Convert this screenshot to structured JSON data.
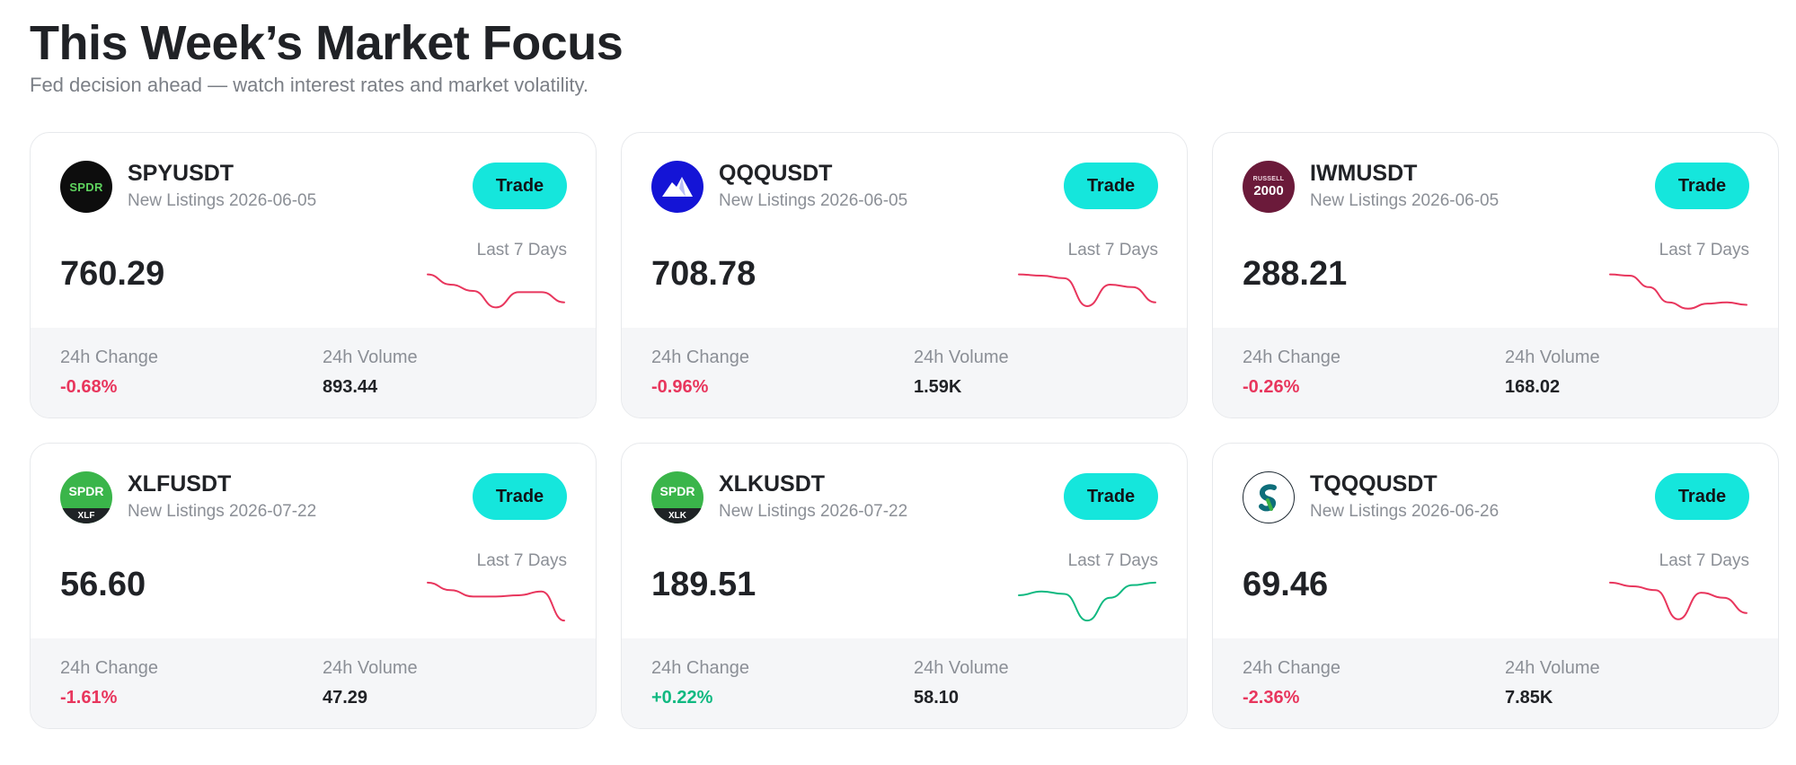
{
  "header": {
    "title": "This Week’s Market Focus",
    "subtitle": "Fed decision ahead — watch interest rates and market volatility."
  },
  "colors": {
    "negative": "#e8365d",
    "positive": "#10b981",
    "accent": "#15e6dc"
  },
  "labels": {
    "trade": "Trade",
    "range": "Last 7 Days",
    "change": "24h Change",
    "volume": "24h Volume"
  },
  "cards": [
    {
      "symbol": "SPYUSDT",
      "listing": "New Listings 2026-06-05",
      "price": "760.29",
      "change": "-0.68%",
      "volume": "893.44",
      "trend": "down",
      "logo": {
        "icon": "spdr-logo",
        "text": "SPDR",
        "sub": ""
      },
      "spark": [
        30,
        22,
        17,
        4,
        16,
        16,
        8
      ]
    },
    {
      "symbol": "QQQUSDT",
      "listing": "New Listings 2026-06-05",
      "price": "708.78",
      "change": "-0.96%",
      "volume": "1.59K",
      "trend": "down",
      "logo": {
        "icon": "invesco-mountain-logo",
        "text": "",
        "sub": ""
      },
      "spark": [
        30,
        29,
        27,
        5,
        22,
        20,
        8
      ]
    },
    {
      "symbol": "IWMUSDT",
      "listing": "New Listings 2026-06-05",
      "price": "288.21",
      "change": "-0.26%",
      "volume": "168.02",
      "trend": "down",
      "logo": {
        "icon": "russell-2000-logo",
        "text": "2000",
        "sub": "RUSSELL"
      },
      "spark": [
        30,
        29,
        20,
        8,
        3,
        7,
        8,
        6
      ]
    },
    {
      "symbol": "XLFUSDT",
      "listing": "New Listings 2026-07-22",
      "price": "56.60",
      "change": "-1.61%",
      "volume": "47.29",
      "trend": "down",
      "logo": {
        "icon": "spdr-xlf-logo",
        "text": "SPDR",
        "sub": "XLF"
      },
      "spark": [
        32,
        26,
        21,
        21,
        22,
        25,
        2
      ]
    },
    {
      "symbol": "XLKUSDT",
      "listing": "New Listings 2026-07-22",
      "price": "189.51",
      "change": "+0.22%",
      "volume": "58.10",
      "trend": "up",
      "logo": {
        "icon": "spdr-xlk-logo",
        "text": "SPDR",
        "sub": "XLK"
      },
      "spark": [
        22,
        25,
        23,
        2,
        20,
        30,
        32
      ]
    },
    {
      "symbol": "TQQQUSDT",
      "listing": "New Listings 2026-06-26",
      "price": "69.46",
      "change": "-2.36%",
      "volume": "7.85K",
      "trend": "down",
      "logo": {
        "icon": "proshares-logo",
        "text": "",
        "sub": ""
      },
      "spark": [
        32,
        29,
        26,
        3,
        24,
        20,
        8
      ]
    }
  ]
}
